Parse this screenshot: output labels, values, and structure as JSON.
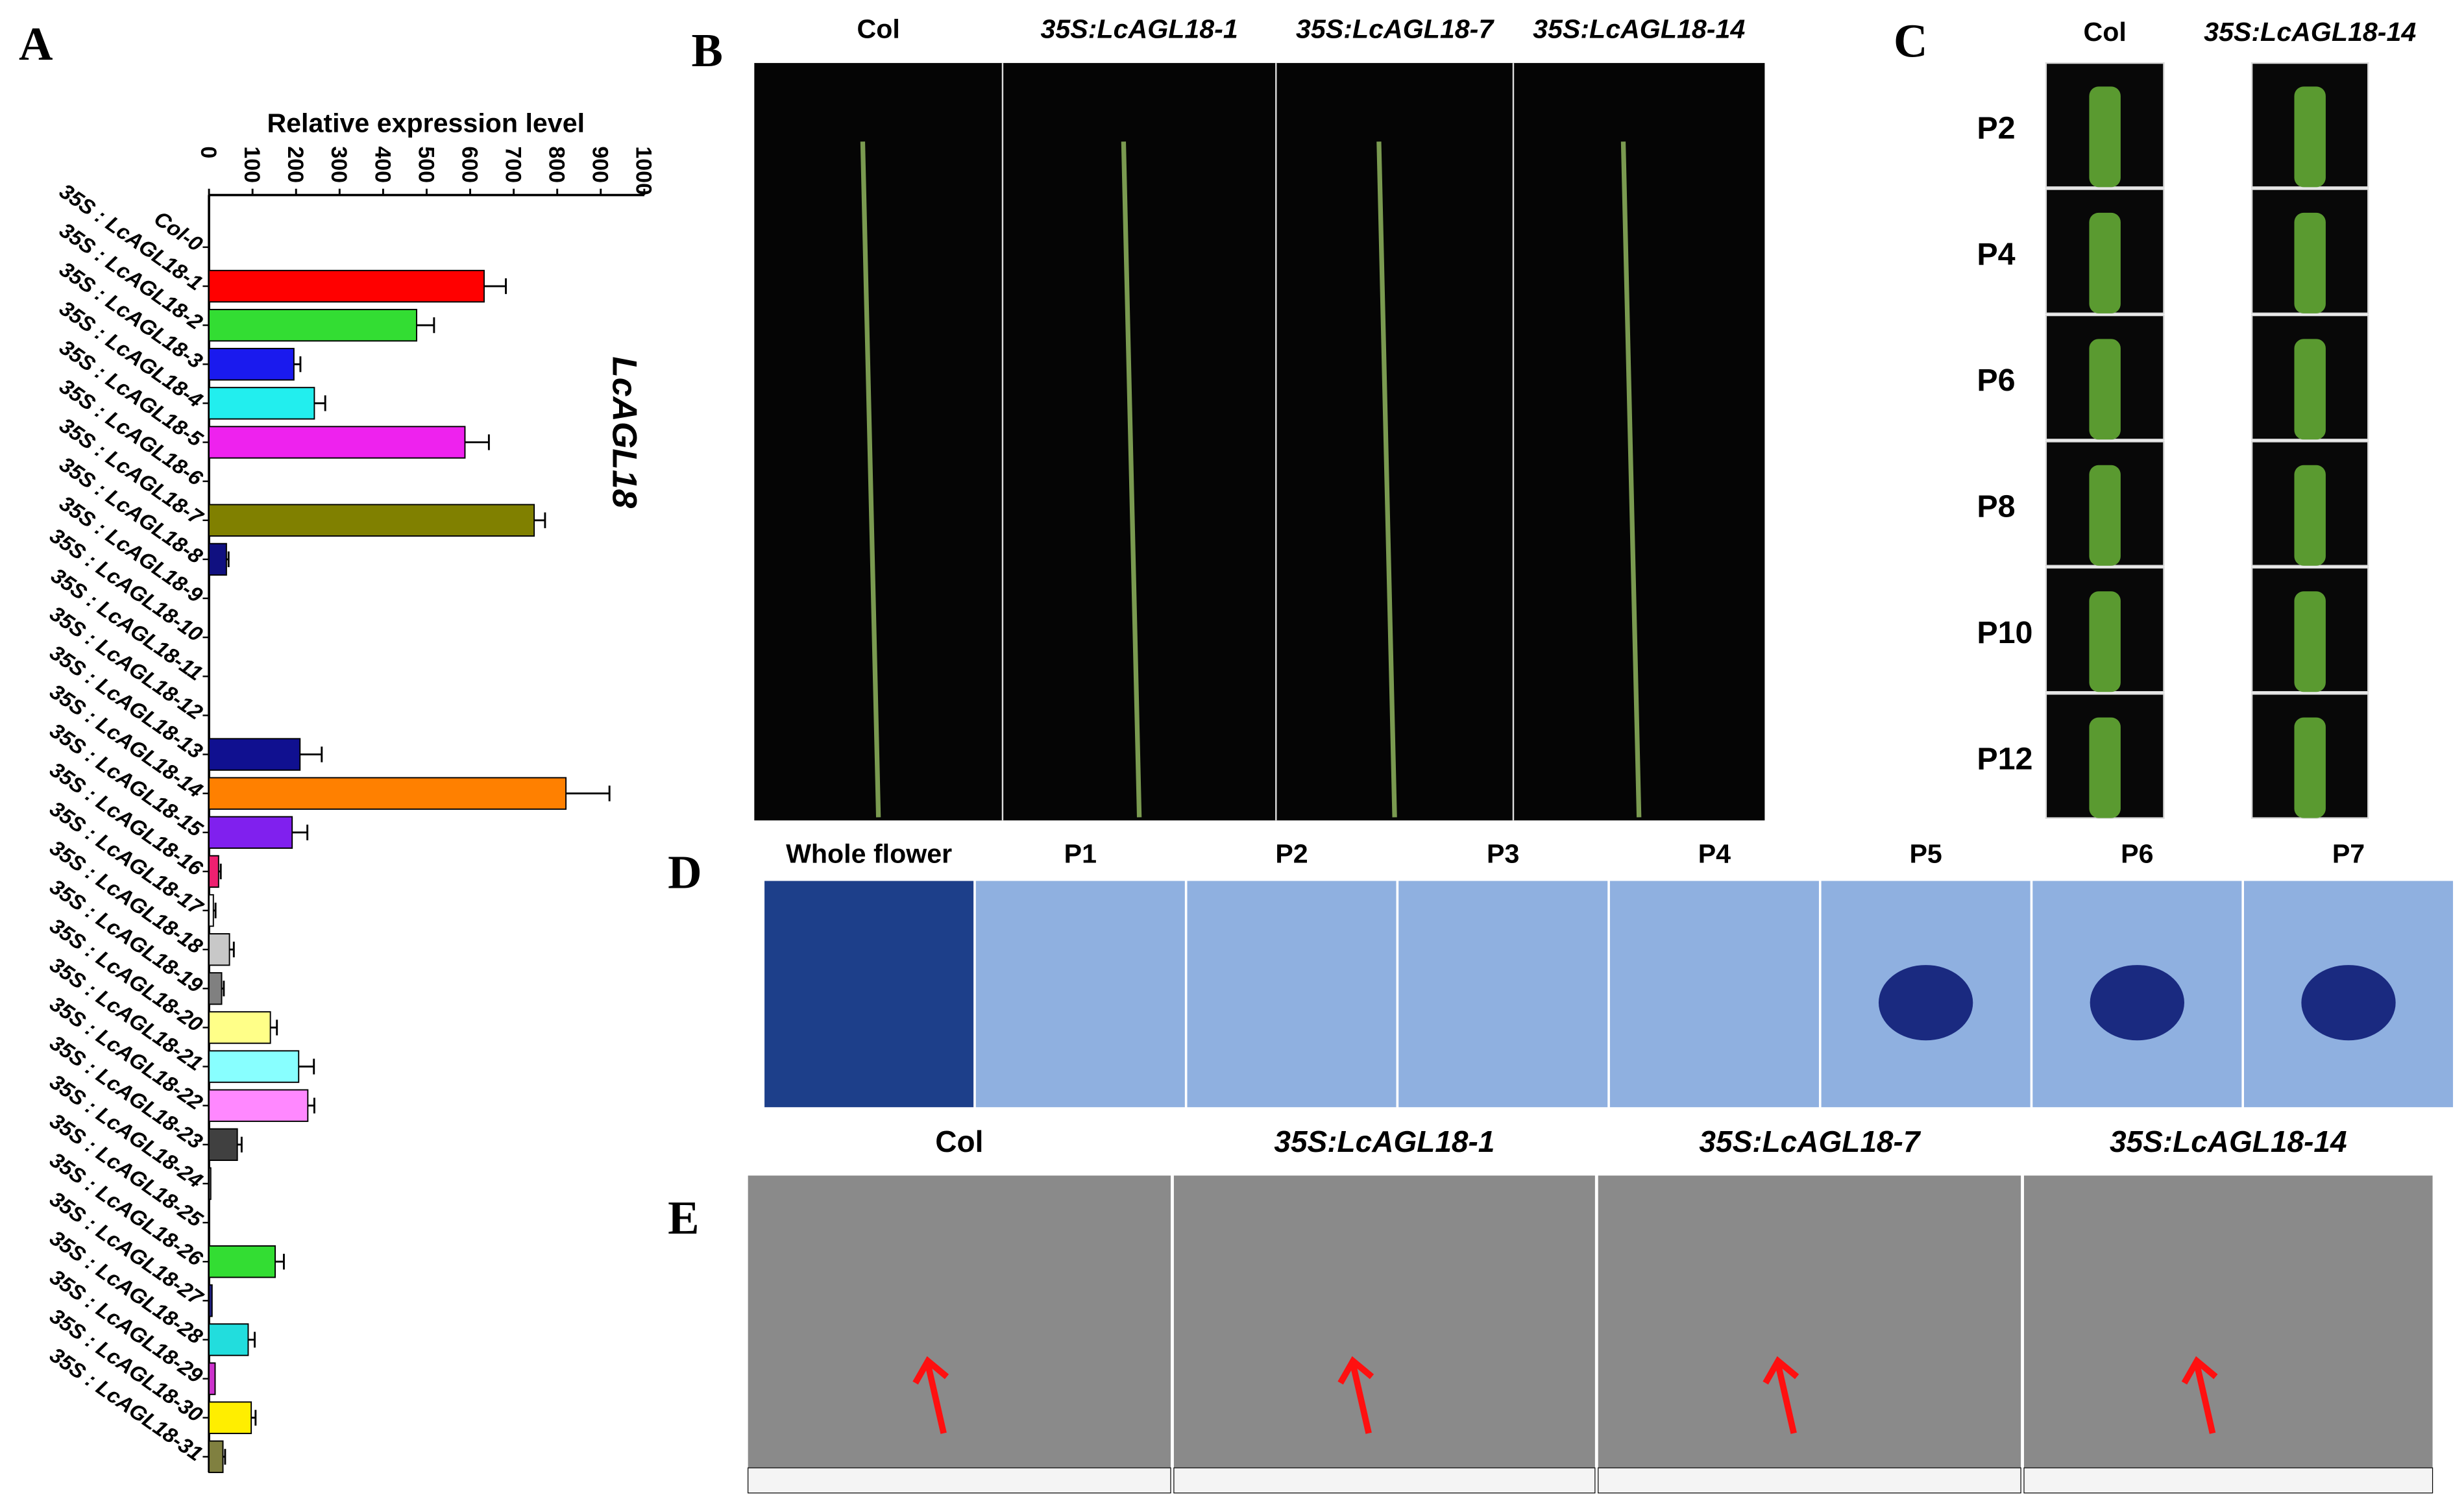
{
  "panel_labels": [
    "A",
    "B",
    "C",
    "D",
    "E"
  ],
  "chart_data": {
    "type": "bar",
    "orientation": "horizontal",
    "x_label": "Relative expression level",
    "y_label": "LcAGL18",
    "categories": [
      "Col-0",
      "35S : LcAGL18-1",
      "35S : LcAGL18-2",
      "35S : LcAGL18-3",
      "35S : LcAGL18-4",
      "35S : LcAGL18-5",
      "35S : LcAGL18-6",
      "35S : LcAGL18-7",
      "35S : LcAGL18-8",
      "35S : LcAGL18-9",
      "35S : LcAGL18-10",
      "35S : LcAGL18-11",
      "35S : LcAGL18-12",
      "35S : LcAGL18-13",
      "35S : LcAGL18-14",
      "35S : LcAGL18-15",
      "35S : LcAGL18-16",
      "35S : LcAGL18-17",
      "35S : LcAGL18-18",
      "35S : LcAGL18-19",
      "35S : LcAGL18-20",
      "35S : LcAGL18-21",
      "35S : LcAGL18-22",
      "35S : LcAGL18-23",
      "35S : LcAGL18-24",
      "35S : LcAGL18-25",
      "35S : LcAGL18-26",
      "35S : LcAGL18-27",
      "35S : LcAGL18-28",
      "35S : LcAGL18-29",
      "35S : LcAGL18-30",
      "35S : LcAGL18-31"
    ],
    "values": [
      0,
      632,
      477,
      195,
      242,
      588,
      0,
      747,
      40,
      0,
      0,
      0,
      0,
      209,
      820,
      191,
      22,
      10,
      47,
      29,
      141,
      206,
      227,
      65,
      4,
      0,
      152,
      7,
      90,
      14,
      97,
      32
    ],
    "errors": [
      0,
      50,
      40,
      15,
      25,
      55,
      0,
      25,
      5,
      0,
      0,
      0,
      0,
      50,
      100,
      35,
      5,
      5,
      10,
      5,
      15,
      35,
      15,
      10,
      0,
      0,
      20,
      0,
      15,
      0,
      10,
      5
    ],
    "colors": [
      "#ffffff",
      "#ff0000",
      "#33dd33",
      "#1a1aee",
      "#22eeee",
      "#ee22ee",
      "#ffffff",
      "#808000",
      "#101080",
      "#ffffff",
      "#ffffff",
      "#ffffff",
      "#ffffff",
      "#101090",
      "#ff8000",
      "#8020ee",
      "#ee2070",
      "#ffffff",
      "#c8c8c8",
      "#808080",
      "#ffff88",
      "#88ffff",
      "#ff88ff",
      "#404040",
      "#808080",
      "#ffffff",
      "#33dd33",
      "#202080",
      "#22dddd",
      "#cc33cc",
      "#ffee00",
      "#808040"
    ],
    "xlim": [
      0,
      1000
    ],
    "xticks": [
      0,
      100,
      200,
      300,
      400,
      500,
      600,
      700,
      800,
      900,
      1000
    ]
  },
  "panel_b": {
    "columns": [
      "Col",
      "35S:LcAGL18-1",
      "35S:LcAGL18-7",
      "35S:LcAGL18-14"
    ]
  },
  "panel_c": {
    "columns": [
      "Col",
      "35S:LcAGL18-14"
    ],
    "rows": [
      "P2",
      "P4",
      "P6",
      "P8",
      "P10",
      "P12"
    ]
  },
  "panel_d": {
    "columns": [
      "Whole flower",
      "P1",
      "P2",
      "P3",
      "P4",
      "P5",
      "P6",
      "P7"
    ]
  },
  "panel_e": {
    "columns": [
      "Col",
      "35S:LcAGL18-1",
      "35S:LcAGL18-7",
      "35S:LcAGL18-14"
    ]
  }
}
